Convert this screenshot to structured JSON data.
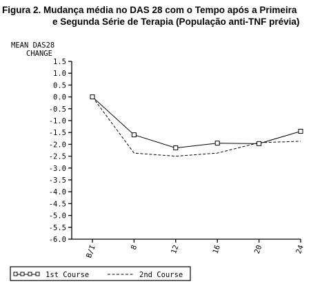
{
  "figure": {
    "title_line1": "Figura 2. Mudança média no DAS 28 com o Tempo após a Primeira",
    "title_line2": "e Segunda Série de Terapia (População anti-TNF prévia)"
  },
  "chart_data": {
    "type": "line",
    "ylabel_line1": "MEAN DAS28",
    "ylabel_line2": "CHANGE",
    "xlabel": "",
    "categories": [
      "B/I",
      "8",
      "12",
      "16",
      "20",
      "24"
    ],
    "ylim": [
      -6.0,
      1.5
    ],
    "yticks": [
      "1.5",
      "1.0",
      "0.5",
      "0.0",
      "-0.5",
      "-1.0",
      "-1.5",
      "-2.0",
      "-2.5",
      "-3.0",
      "-3.5",
      "-4.0",
      "-4.5",
      "-5.0",
      "-5.5",
      "-6.0"
    ],
    "grid": false,
    "legend_position": "bottom-left",
    "series": [
      {
        "name": "1st Course",
        "style": "solid-square-markers",
        "values": [
          0.0,
          -1.6,
          -2.15,
          -1.95,
          -1.97,
          -1.45
        ]
      },
      {
        "name": "2nd Course",
        "style": "dashed",
        "values": [
          0.0,
          -2.37,
          -2.5,
          -2.37,
          -1.93,
          -1.87
        ]
      }
    ]
  }
}
